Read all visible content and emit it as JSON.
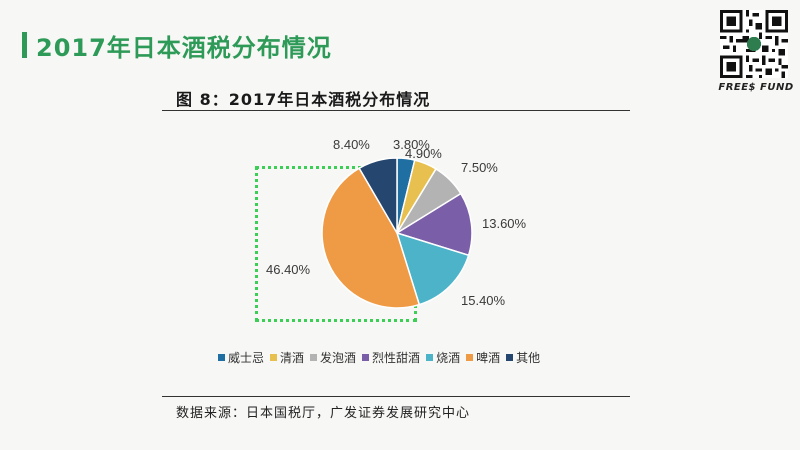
{
  "slide": {
    "title": "2017年日本酒税分布情况",
    "brand_name": "FREE$ FUND"
  },
  "figure": {
    "title": "图  8：2017年日本酒税分布情况",
    "source": "数据来源：日本国税厅，广发证券发展研究中心"
  },
  "chart_data": {
    "type": "pie",
    "title": "",
    "categories": [
      "威士忌",
      "清酒",
      "发泡酒",
      "烈性甜酒",
      "烧酒",
      "啤酒",
      "其他"
    ],
    "values": [
      3.8,
      4.9,
      7.5,
      13.6,
      15.4,
      46.4,
      8.4
    ],
    "labels": [
      "3.80%",
      "4.90%",
      "7.50%",
      "13.60%",
      "15.40%",
      "46.40%",
      "8.40%"
    ],
    "colors": [
      "#1f6fa3",
      "#e8c04f",
      "#b3b3b3",
      "#7a5ea8",
      "#4cb3c9",
      "#ef9a44",
      "#24466f"
    ],
    "legend_position": "bottom"
  }
}
